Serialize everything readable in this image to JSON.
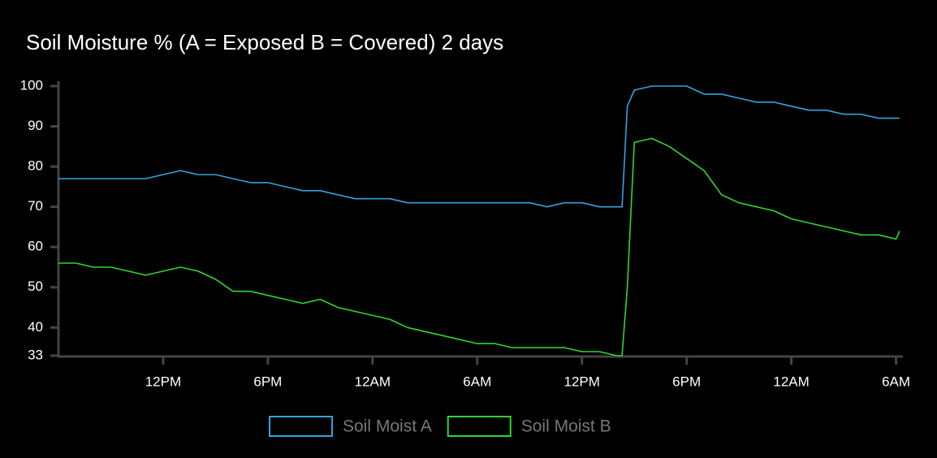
{
  "chart_data": {
    "type": "line",
    "title": "Soil Moisture % (A = Exposed B = Covered) 2 days",
    "x": [
      0,
      1,
      2,
      3,
      4,
      5,
      6,
      7,
      8,
      9,
      10,
      11,
      12,
      13,
      14,
      15,
      16,
      17,
      18,
      19,
      20,
      21,
      22,
      23,
      24,
      25,
      26,
      27,
      28,
      29,
      30,
      31,
      32,
      32.3,
      32.6,
      33,
      34,
      35,
      36,
      37,
      38,
      39,
      40,
      41,
      42,
      43,
      44,
      45,
      46,
      47,
      48,
      48.2
    ],
    "series": [
      {
        "name": "Soil Moist A",
        "color": "#33a3dc",
        "values": [
          77,
          77,
          77,
          77,
          77,
          77,
          78,
          79,
          78,
          78,
          77,
          76,
          76,
          75,
          74,
          74,
          73,
          72,
          72,
          72,
          71,
          71,
          71,
          71,
          71,
          71,
          71,
          71,
          70,
          71,
          71,
          70,
          70,
          70,
          95,
          99,
          100,
          100,
          100,
          98,
          98,
          97,
          96,
          96,
          95,
          94,
          94,
          93,
          93,
          92,
          92,
          92
        ]
      },
      {
        "name": "Soil Moist B",
        "color": "#33d42e",
        "values": [
          56,
          56,
          55,
          55,
          54,
          53,
          54,
          55,
          54,
          52,
          49,
          49,
          48,
          47,
          46,
          47,
          45,
          44,
          43,
          42,
          40,
          39,
          38,
          37,
          36,
          36,
          35,
          35,
          35,
          35,
          34,
          34,
          33,
          33,
          50,
          86,
          87,
          85,
          82,
          79,
          73,
          71,
          70,
          69,
          67,
          66,
          65,
          64,
          63,
          63,
          62,
          64
        ]
      }
    ],
    "xlim": [
      0,
      48.3
    ],
    "xticks": [
      {
        "value": 6,
        "label": "12PM"
      },
      {
        "value": 12,
        "label": "6PM"
      },
      {
        "value": 18,
        "label": "12AM"
      },
      {
        "value": 24,
        "label": "6AM"
      },
      {
        "value": 30,
        "label": "12PM"
      },
      {
        "value": 36,
        "label": "6PM"
      },
      {
        "value": 42,
        "label": "12AM"
      },
      {
        "value": 48,
        "label": "6AM"
      }
    ],
    "ylim": [
      33,
      100
    ],
    "yticks": [
      33,
      40,
      50,
      60,
      70,
      80,
      90,
      100
    ],
    "grid": false
  }
}
